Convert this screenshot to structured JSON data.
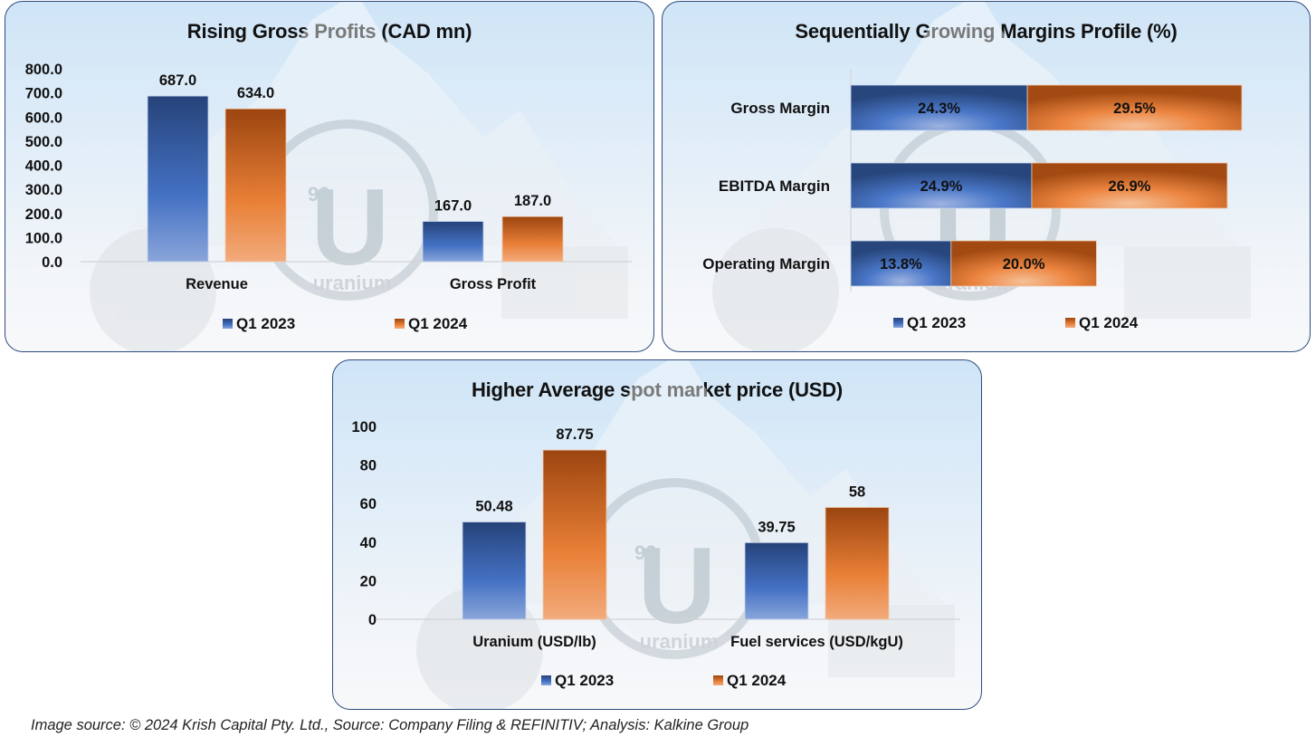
{
  "colors": {
    "series_q1_2023": "#4472c4",
    "series_q1_2024": "#ed7d31",
    "panel_border": "#2f4c7e"
  },
  "watermark": {
    "element_number": "92",
    "element_symbol": "U",
    "element_name": "uranium"
  },
  "footer": {
    "text": "Image source: © 2024 Krish Capital Pty. Ltd., Source: Company Filing & REFINITIV; Analysis: Kalkine Group"
  },
  "chart_data": [
    {
      "id": "gross-profits",
      "type": "bar",
      "title": "Rising Gross Profits (CAD mn)",
      "xlabel": "",
      "ylabel": "",
      "categories": [
        "Revenue",
        "Gross Profit"
      ],
      "series": [
        {
          "name": "Q1 2023",
          "values": [
            687.0,
            167.0
          ],
          "labels": [
            "687.0",
            "167.0"
          ]
        },
        {
          "name": "Q1 2024",
          "values": [
            634.0,
            187.0
          ],
          "labels": [
            "634.0",
            "187.0"
          ]
        }
      ],
      "ylim": [
        0,
        800
      ],
      "yticks": [
        "0.0",
        "100.0",
        "200.0",
        "300.0",
        "400.0",
        "500.0",
        "600.0",
        "700.0",
        "800.0"
      ],
      "grid": false,
      "legend": "bottom"
    },
    {
      "id": "margins-profile",
      "type": "bar",
      "orientation": "horizontal-stacked",
      "title": "Sequentially Growing Margins Profile (%)",
      "categories": [
        "Gross Margin",
        "EBITDA Margin",
        "Operating Margin"
      ],
      "series": [
        {
          "name": "Q1 2023",
          "values": [
            24.3,
            24.9,
            13.8
          ],
          "labels": [
            "24.3%",
            "24.9%",
            "13.8%"
          ]
        },
        {
          "name": "Q1 2024",
          "values": [
            29.5,
            26.9,
            20.0
          ],
          "labels": [
            "29.5%",
            "26.9%",
            "20.0%"
          ]
        }
      ],
      "xlim": [
        0,
        55
      ],
      "grid": false,
      "legend": "bottom"
    },
    {
      "id": "spot-price",
      "type": "bar",
      "title": "Higher Average spot market price (USD)",
      "xlabel": "",
      "ylabel": "",
      "categories": [
        "Uranium (USD/lb)",
        "Fuel services (USD/kgU)"
      ],
      "series": [
        {
          "name": "Q1 2023",
          "values": [
            50.48,
            39.75
          ],
          "labels": [
            "50.48",
            "39.75"
          ]
        },
        {
          "name": "Q1 2024",
          "values": [
            87.75,
            58
          ],
          "labels": [
            "87.75",
            "58"
          ]
        }
      ],
      "ylim": [
        0,
        100
      ],
      "yticks": [
        "0",
        "20",
        "40",
        "60",
        "80",
        "100"
      ],
      "grid": false,
      "legend": "bottom"
    }
  ]
}
